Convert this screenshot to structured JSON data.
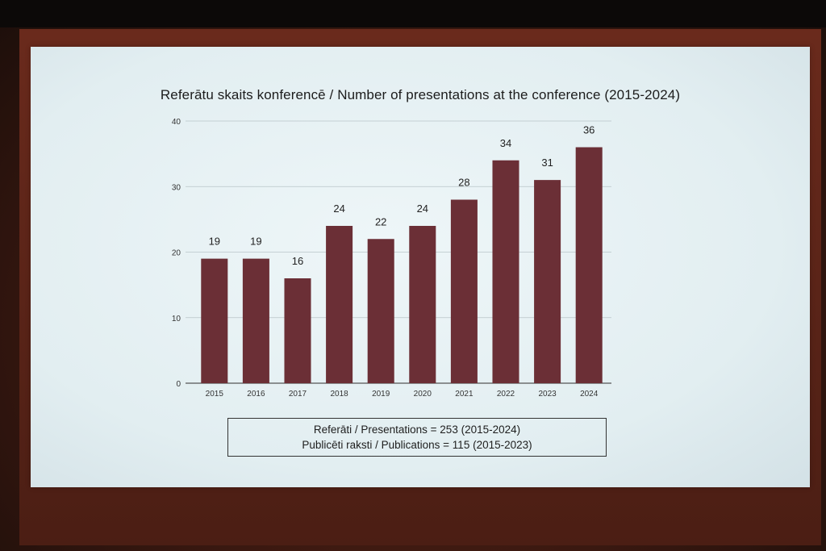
{
  "chart_data": {
    "type": "bar",
    "title": "Referātu skaits konferencē / Number of presentations at the conference (2015-2024)",
    "categories": [
      "2015",
      "2016",
      "2017",
      "2018",
      "2019",
      "2020",
      "2021",
      "2022",
      "2023",
      "2024"
    ],
    "values": [
      19,
      19,
      16,
      24,
      22,
      24,
      28,
      34,
      31,
      36
    ],
    "yticks": [
      0,
      10,
      20,
      30,
      40
    ],
    "ylim": [
      0,
      40
    ],
    "grid": true,
    "bar_color": "#6b2f36"
  },
  "summary": {
    "line1": "Referāti / Presentations = 253 (2015-2024)",
    "line2": "Publicēti raksti / Publications = 115 (2015-2023)"
  }
}
